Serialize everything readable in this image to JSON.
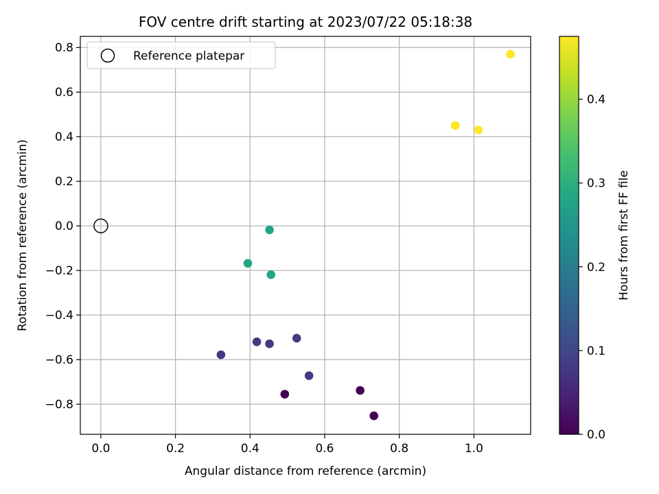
{
  "chart_data": {
    "type": "scatter",
    "title": "FOV centre drift starting at 2023/07/22 05:18:38",
    "xlabel": "Angular distance from reference (arcmin)",
    "ylabel": "Rotation from reference (arcmin)",
    "xlim": [
      -0.055,
      1.152
    ],
    "ylim": [
      -0.935,
      0.85
    ],
    "xticks": [
      0.0,
      0.2,
      0.4,
      0.6,
      0.8,
      1.0
    ],
    "xtick_labels": [
      "0.0",
      "0.2",
      "0.4",
      "0.6",
      "0.8",
      "1.0"
    ],
    "yticks": [
      -0.8,
      -0.6,
      -0.4,
      -0.2,
      0.0,
      0.2,
      0.4,
      0.6,
      0.8
    ],
    "ytick_labels": [
      "−0.8",
      "−0.6",
      "−0.4",
      "−0.2",
      "0.0",
      "0.2",
      "0.4",
      "0.6",
      "0.8"
    ],
    "grid": true,
    "legend": {
      "location": "upper-left",
      "entries": [
        {
          "label": "Reference platepar",
          "marker": "open-circle"
        }
      ]
    },
    "reference_point": {
      "x": 0.0,
      "y": 0.0
    },
    "points": [
      {
        "x": 0.493,
        "y": -0.755,
        "c": 0.0
      },
      {
        "x": 0.695,
        "y": -0.738,
        "c": 0.0
      },
      {
        "x": 0.732,
        "y": -0.852,
        "c": 0.0
      },
      {
        "x": 0.322,
        "y": -0.578,
        "c": 0.08
      },
      {
        "x": 0.418,
        "y": -0.52,
        "c": 0.08
      },
      {
        "x": 0.452,
        "y": -0.529,
        "c": 0.08
      },
      {
        "x": 0.525,
        "y": -0.504,
        "c": 0.08
      },
      {
        "x": 0.558,
        "y": -0.672,
        "c": 0.08
      },
      {
        "x": 0.394,
        "y": -0.168,
        "c": 0.28
      },
      {
        "x": 0.452,
        "y": -0.018,
        "c": 0.28
      },
      {
        "x": 0.456,
        "y": -0.219,
        "c": 0.28
      },
      {
        "x": 0.95,
        "y": 0.45,
        "c": 0.475
      },
      {
        "x": 1.012,
        "y": 0.43,
        "c": 0.475
      },
      {
        "x": 1.098,
        "y": 0.77,
        "c": 0.475
      }
    ],
    "colorbar": {
      "label": "Hours from first FF file",
      "colormap": "viridis",
      "range": [
        0.0,
        0.475
      ],
      "ticks": [
        0.0,
        0.1,
        0.2,
        0.3,
        0.4
      ],
      "tick_labels": [
        "0.0",
        "0.1",
        "0.2",
        "0.3",
        "0.4"
      ]
    }
  }
}
